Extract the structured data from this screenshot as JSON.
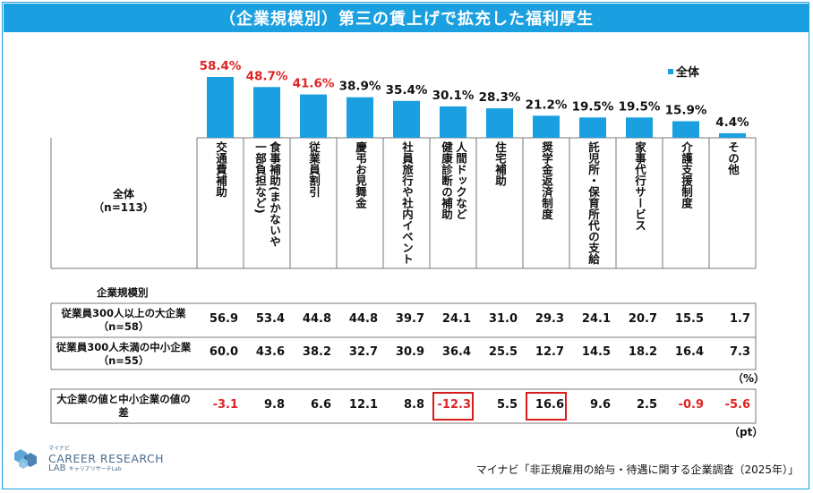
{
  "title": "（企業規模別）第三の賃上げで拡充した福利厚生",
  "legend_label": "全体",
  "corner_label": "全体\n（n=113）",
  "section_label": "企業規模別",
  "unit_percent": "（%）",
  "unit_pt": "（pt）",
  "source": "マイナビ「非正規雇用の給与・待遇に関する企業調査（2025年）」",
  "logo": {
    "top": "マイナビ",
    "main": "CAREER RESEARCH",
    "lab": "LAB",
    "sub": "キャリアリサーチLab"
  },
  "chart_data": {
    "type": "bar",
    "title": "（企業規模別）第三の賃上げで拡充した福利厚生",
    "series_name": "全体",
    "categories": [
      "交通費補助",
      "食事補助（まかないや一部負担など）",
      "従業員割引",
      "慶弔お見舞金",
      "社員旅行や社内イベント",
      "人間ドックなど健康診断の補助",
      "住宅補助",
      "奨学金返済制度",
      "託児所・保育所代の支給",
      "家事代行サービス",
      "介護支援制度",
      "その他"
    ],
    "category_lines": [
      "交通費補助",
      "食事補助(まかないや\n一部負担など)",
      "従業員割引",
      "慶弔お見舞金",
      "社員旅行や社内イベント",
      "人間ドックなど\n健康診断の補助",
      "住宅補助",
      "奨学金返済制度",
      "託児所・保育所代の支給",
      "家事代行サービス",
      "介護支援制度",
      "その他"
    ],
    "values": [
      58.4,
      48.7,
      41.6,
      38.9,
      35.4,
      30.1,
      28.3,
      21.2,
      19.5,
      19.5,
      15.9,
      4.4
    ],
    "value_labels": [
      "58.4%",
      "48.7%",
      "41.6%",
      "38.9%",
      "35.4%",
      "30.1%",
      "28.3%",
      "21.2%",
      "19.5%",
      "19.5%",
      "15.9%",
      "4.4%"
    ],
    "highlight_top": 3,
    "ylim": [
      0,
      70
    ],
    "bar_color": "#1A9FE0",
    "highlight_color": "#E02424"
  },
  "table": {
    "rows": [
      {
        "label": "従業員300人以上の大企業\n（n=58）",
        "values": [
          "56.9",
          "53.4",
          "44.8",
          "44.8",
          "39.7",
          "24.1",
          "31.0",
          "29.3",
          "24.1",
          "20.7",
          "15.5",
          "1.7"
        ]
      },
      {
        "label": "従業員300人未満の中小企業\n（n=55）",
        "values": [
          "60.0",
          "43.6",
          "38.2",
          "32.7",
          "30.9",
          "36.4",
          "25.5",
          "12.7",
          "14.5",
          "18.2",
          "16.4",
          "7.3"
        ]
      }
    ],
    "diff_row": {
      "label": "大企業の値と中小企業の値の\n差",
      "values": [
        "-3.1",
        "9.8",
        "6.6",
        "12.1",
        "8.8",
        "-12.3",
        "5.5",
        "16.6",
        "9.6",
        "2.5",
        "-0.9",
        "-5.6"
      ],
      "highlighted": [
        "-12.3",
        "16.6"
      ]
    }
  }
}
